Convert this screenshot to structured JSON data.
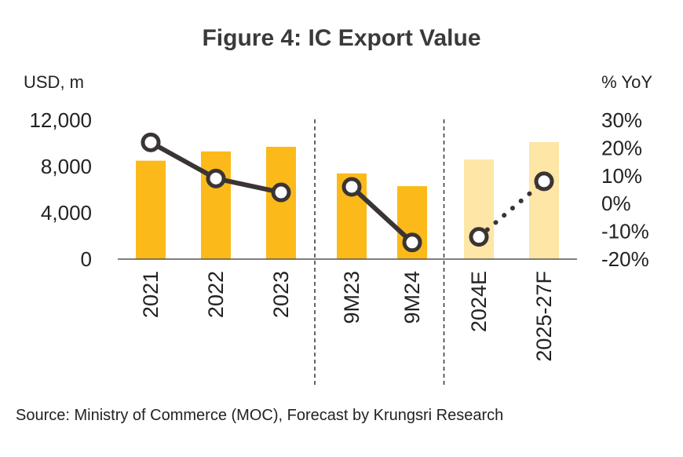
{
  "chart_data": {
    "type": "bar",
    "title": "Figure 4: IC Export Value",
    "y_left_label": "USD, m",
    "y_right_label": "%  YoY",
    "categories": [
      "2021",
      "2022",
      "2023",
      "9M23",
      "9M24",
      "2024E",
      "2025-27F"
    ],
    "y_left_ticks": [
      "12,000",
      "8,000",
      "4,000",
      "0"
    ],
    "y_right_ticks": [
      "30%",
      "20%",
      "10%",
      "0%",
      "-10%",
      "-20%"
    ],
    "ylim_left": [
      0,
      12000
    ],
    "ylim_right": [
      -20,
      30
    ],
    "series": [
      {
        "type": "bar",
        "values": [
          8500,
          9300,
          9700,
          7400,
          6300,
          8600,
          10100
        ],
        "colors": [
          "#FBBA19",
          "#FBBA19",
          "#FBBA19",
          "#FBBA19",
          "#FBBA19",
          "#FDE6A6",
          "#FDE6A6"
        ]
      },
      {
        "type": "line",
        "axis": "right",
        "values": [
          22,
          9,
          4,
          6,
          -14,
          -12,
          8
        ],
        "segments": [
          {
            "from": 0,
            "to": 2,
            "style": "solid"
          },
          {
            "from": 3,
            "to": 4,
            "style": "solid"
          },
          {
            "from": 5,
            "to": 6,
            "style": "dotted"
          }
        ]
      }
    ],
    "separators_after": [
      2,
      4
    ],
    "source": "Source: Ministry of Commerce (MOC), Forecast by Krungsri Research"
  },
  "colors": {
    "bar_actual": "#FBBA19",
    "bar_forecast": "#FDE6A6",
    "line": "#3b3434",
    "axis": "#555555"
  }
}
